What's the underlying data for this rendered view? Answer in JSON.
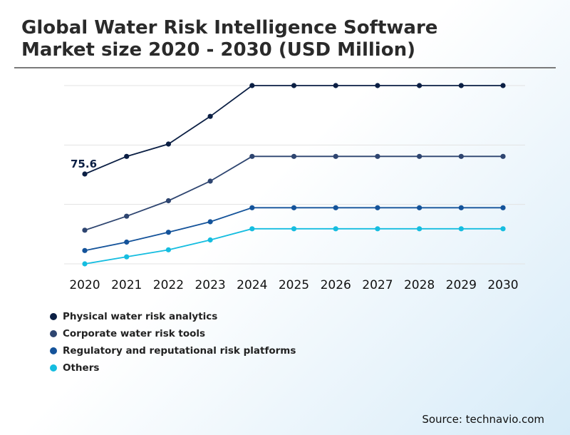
{
  "title": {
    "line1": "Global Water Risk Intelligence Software",
    "line2": "Market size 2020 - 2030 (USD Million)"
  },
  "source": "Source: technavio.com",
  "colors": {
    "physical": "#0b1f44",
    "corporate": "#2e4570",
    "regulatory": "#14539a",
    "others": "#15bde0"
  },
  "chart_data": {
    "type": "line",
    "title": "Global Water Risk Intelligence Software Market size 2020 - 2030 (USD Million)",
    "categories": [
      "2020",
      "2021",
      "2022",
      "2023",
      "2024",
      "2025",
      "2026",
      "2027",
      "2028",
      "2029",
      "2030"
    ],
    "ylim": [
      0,
      150
    ],
    "grid": true,
    "legend_position": "bottom-left",
    "annotations": [
      {
        "series": "Physical water risk analytics",
        "category": "2020",
        "text": "75.6"
      }
    ],
    "series": [
      {
        "name": "Physical water risk analytics",
        "color": "#0b1f44",
        "values": [
          75.6,
          90.4,
          100.8,
          124.1,
          150.0,
          150.0,
          150.0,
          150.0,
          150.0,
          150.0,
          150.0
        ]
      },
      {
        "name": "Corporate water risk tools",
        "color": "#2e4570",
        "values": [
          28.3,
          40.1,
          53.1,
          69.6,
          90.4,
          90.4,
          90.4,
          90.4,
          90.4,
          90.4,
          90.4
        ]
      },
      {
        "name": "Regulatory and reputational risk platforms",
        "color": "#14539a",
        "values": [
          11.2,
          18.3,
          26.6,
          35.4,
          47.2,
          47.2,
          47.2,
          47.2,
          47.2,
          47.2,
          47.2
        ]
      },
      {
        "name": "Others",
        "color": "#15bde0",
        "values": [
          0.0,
          5.9,
          11.8,
          20.1,
          29.5,
          29.5,
          29.5,
          29.5,
          29.5,
          29.5,
          29.5
        ]
      }
    ]
  }
}
